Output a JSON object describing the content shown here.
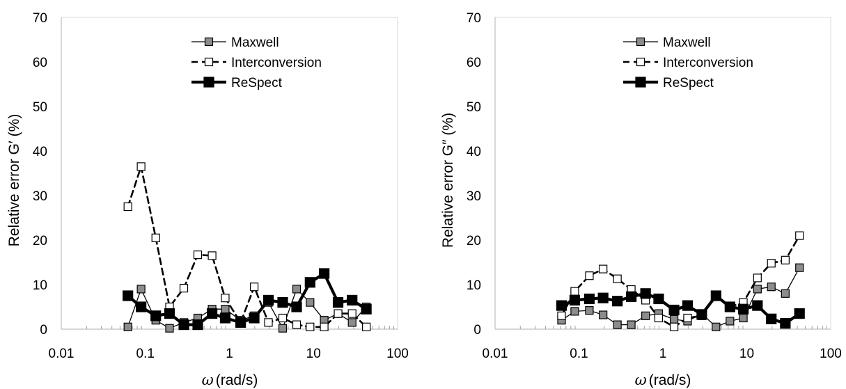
{
  "chart_data": [
    {
      "type": "line",
      "xscale": "log",
      "xlim": [
        0.01,
        100
      ],
      "ylim": [
        0,
        70
      ],
      "xticks": [
        "0.01",
        "0.1",
        "1",
        "10",
        "100"
      ],
      "yticks": [
        "0",
        "10",
        "20",
        "30",
        "40",
        "50",
        "60",
        "70"
      ],
      "xlabel_symbol": "ω",
      "xlabel_unit": "(rad/s)",
      "ylabel": "Relative error G′ (%)",
      "legend_position": "top-right",
      "grid": false,
      "series": [
        {
          "name": "Maxwell",
          "style": "thin-solid",
          "marker_fill": "#8c8c8c",
          "line_color": "#000000",
          "x": [
            0.062,
            0.089,
            0.133,
            0.194,
            0.287,
            0.42,
            0.622,
            0.891,
            1.36,
            1.97,
            2.91,
            4.3,
            6.3,
            9.1,
            13.4,
            19.6,
            28.8,
            42.5
          ],
          "y": [
            0.5,
            9.0,
            2.0,
            0.2,
            1.5,
            2.5,
            4.5,
            4.5,
            2.0,
            3.0,
            6.0,
            0.2,
            9.0,
            6.0,
            2.0,
            3.5,
            1.5,
            5.0
          ]
        },
        {
          "name": "Interconversion",
          "style": "dashed",
          "marker_fill": "#ffffff",
          "line_color": "#000000",
          "x": [
            0.062,
            0.089,
            0.133,
            0.194,
            0.287,
            0.42,
            0.622,
            0.891,
            1.36,
            1.97,
            2.91,
            4.3,
            6.3,
            9.1,
            13.4,
            19.6,
            28.8,
            42.5
          ],
          "y": [
            27.5,
            36.5,
            20.5,
            5.0,
            9.2,
            16.7,
            16.5,
            7.0,
            1.5,
            9.5,
            1.5,
            2.5,
            1.0,
            0.5,
            0.5,
            3.5,
            3.5,
            0.5
          ]
        },
        {
          "name": "ReSpect",
          "style": "thick-solid",
          "marker_fill": "#000000",
          "line_color": "#000000",
          "x": [
            0.062,
            0.089,
            0.133,
            0.194,
            0.287,
            0.42,
            0.622,
            0.891,
            1.36,
            1.97,
            2.91,
            4.3,
            6.3,
            9.1,
            13.4,
            19.6,
            28.8,
            42.5
          ],
          "y": [
            7.5,
            5.0,
            3.0,
            3.5,
            1.0,
            1.0,
            3.5,
            2.5,
            1.5,
            2.5,
            6.5,
            6.0,
            5.0,
            10.5,
            12.5,
            6.0,
            6.5,
            4.5
          ]
        }
      ]
    },
    {
      "type": "line",
      "xscale": "log",
      "xlim": [
        0.01,
        100
      ],
      "ylim": [
        0,
        70
      ],
      "xticks": [
        "0.01",
        "0.1",
        "1",
        "10",
        "100"
      ],
      "yticks": [
        "0",
        "10",
        "20",
        "30",
        "40",
        "50",
        "60",
        "70"
      ],
      "xlabel_symbol": "ω",
      "xlabel_unit": "(rad/s)",
      "ylabel": "Relative error G″ (%)",
      "legend_position": "top-right",
      "grid": false,
      "series": [
        {
          "name": "Maxwell",
          "style": "thin-solid",
          "marker_fill": "#8c8c8c",
          "line_color": "#000000",
          "x": [
            0.062,
            0.089,
            0.133,
            0.194,
            0.287,
            0.42,
            0.622,
            0.891,
            1.36,
            1.97,
            2.91,
            4.3,
            6.3,
            9.1,
            13.4,
            19.6,
            28.8,
            42.5
          ],
          "y": [
            2.0,
            4.0,
            4.2,
            3.2,
            1.0,
            1.0,
            3.0,
            3.5,
            2.2,
            1.8,
            3.5,
            0.5,
            1.8,
            2.5,
            9.0,
            9.5,
            8.0,
            13.8
          ]
        },
        {
          "name": "Interconversion",
          "style": "dashed",
          "marker_fill": "#ffffff",
          "line_color": "#000000",
          "x": [
            0.062,
            0.089,
            0.133,
            0.194,
            0.287,
            0.42,
            0.622,
            0.891,
            1.36,
            1.97,
            2.91,
            4.3,
            6.3,
            9.1,
            13.4,
            19.6,
            28.8,
            42.5
          ],
          "y": [
            3.0,
            8.5,
            12.0,
            13.5,
            11.3,
            8.9,
            6.5,
            2.5,
            0.5,
            2.5,
            3.0,
            7.5,
            5.0,
            6.0,
            11.5,
            14.8,
            15.5,
            21.0
          ]
        },
        {
          "name": "ReSpect",
          "style": "thick-solid",
          "marker_fill": "#000000",
          "line_color": "#000000",
          "x": [
            0.062,
            0.089,
            0.133,
            0.194,
            0.287,
            0.42,
            0.622,
            0.891,
            1.36,
            1.97,
            2.91,
            4.3,
            6.3,
            9.1,
            13.4,
            19.6,
            28.8,
            42.5
          ],
          "y": [
            5.3,
            6.5,
            6.8,
            7.0,
            6.3,
            7.3,
            8.0,
            6.8,
            4.3,
            5.3,
            3.3,
            7.5,
            5.0,
            4.5,
            5.3,
            2.3,
            1.3,
            3.5
          ]
        }
      ]
    }
  ]
}
